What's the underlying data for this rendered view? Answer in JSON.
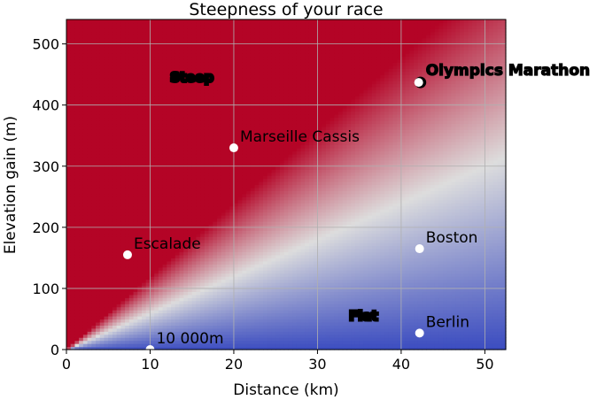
{
  "chart_data": {
    "type": "heatmap",
    "title": "Steepness of your race",
    "xlabel": "Distance (km)",
    "ylabel": "Elevation gain (m)",
    "xlim": [
      0,
      52.5
    ],
    "ylim": [
      0,
      540
    ],
    "xticks": [
      0,
      10,
      20,
      30,
      40,
      50
    ],
    "yticks": [
      0,
      100,
      200,
      300,
      400,
      500
    ],
    "grid": true,
    "colormap": [
      "#3b4cc0",
      "#dddddd",
      "#b40426"
    ],
    "regions": [
      {
        "label": "Steep",
        "x": 15,
        "y": 445,
        "color": "#e83a2c"
      },
      {
        "label": "Flat",
        "x": 35.5,
        "y": 55,
        "color": "#3d8fe6"
      }
    ],
    "points": [
      {
        "label": "Olympics Marathon",
        "x": 42.2,
        "y": 437,
        "highlight": true
      },
      {
        "label": "Marseille Cassis",
        "x": 20,
        "y": 330
      },
      {
        "label": "Escalade",
        "x": 7.3,
        "y": 155
      },
      {
        "label": "Boston",
        "x": 42.2,
        "y": 165
      },
      {
        "label": "Berlin",
        "x": 42.2,
        "y": 27
      },
      {
        "label": "10 000m",
        "x": 10,
        "y": 0
      }
    ]
  }
}
